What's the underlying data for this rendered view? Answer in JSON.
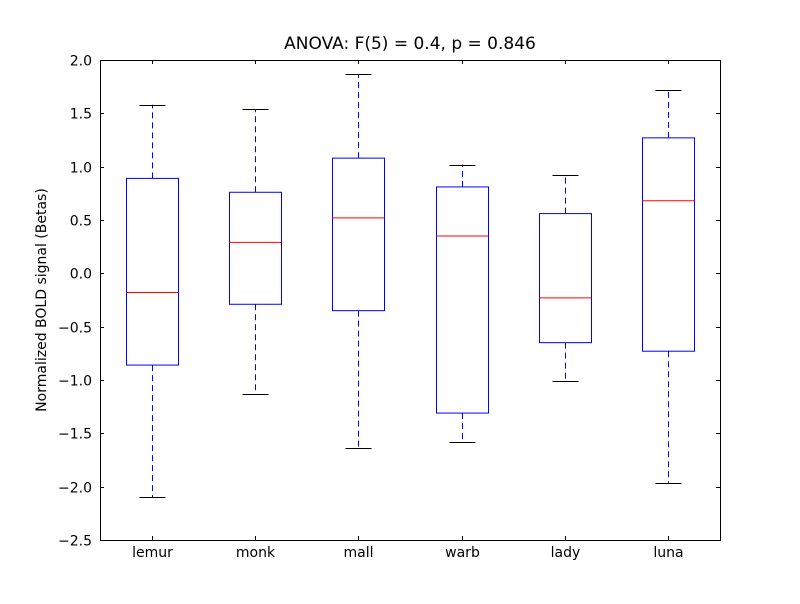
{
  "chart_data": {
    "type": "boxplot",
    "title": "ANOVA: F(5) = 0.4, p = 0.846",
    "xlabel": "",
    "ylabel": "Normalized BOLD signal (Betas)",
    "ylim": [
      -2.5,
      2.0
    ],
    "yticks": [
      -2.5,
      -2.0,
      -1.5,
      -1.0,
      -0.5,
      0.0,
      0.5,
      1.0,
      1.5,
      2.0
    ],
    "ytick_labels": [
      "−2.5",
      "−2.0",
      "−1.5",
      "−1.0",
      "−0.5",
      "0.0",
      "0.5",
      "1.0",
      "1.5",
      "2.0"
    ],
    "categories": [
      "lemur",
      "monk",
      "mall",
      "warb",
      "lady",
      "luna"
    ],
    "boxes": [
      {
        "whisker_low": -2.1,
        "q1": -0.86,
        "median": -0.18,
        "q3": 0.89,
        "whisker_high": 1.58
      },
      {
        "whisker_low": -1.13,
        "q1": -0.29,
        "median": 0.29,
        "q3": 0.76,
        "whisker_high": 1.54
      },
      {
        "whisker_low": -1.64,
        "q1": -0.35,
        "median": 0.52,
        "q3": 1.08,
        "whisker_high": 1.87
      },
      {
        "whisker_low": -1.58,
        "q1": -1.31,
        "median": 0.35,
        "q3": 0.81,
        "whisker_high": 1.02
      },
      {
        "whisker_low": -1.01,
        "q1": -0.65,
        "median": -0.23,
        "q3": 0.56,
        "whisker_high": 0.92
      },
      {
        "whisker_low": -1.97,
        "q1": -0.73,
        "median": 0.68,
        "q3": 1.27,
        "whisker_high": 1.72
      }
    ],
    "grid": false,
    "colors": {
      "box": "#0000ff",
      "median": "#ff0000",
      "cap": "#000000"
    }
  }
}
